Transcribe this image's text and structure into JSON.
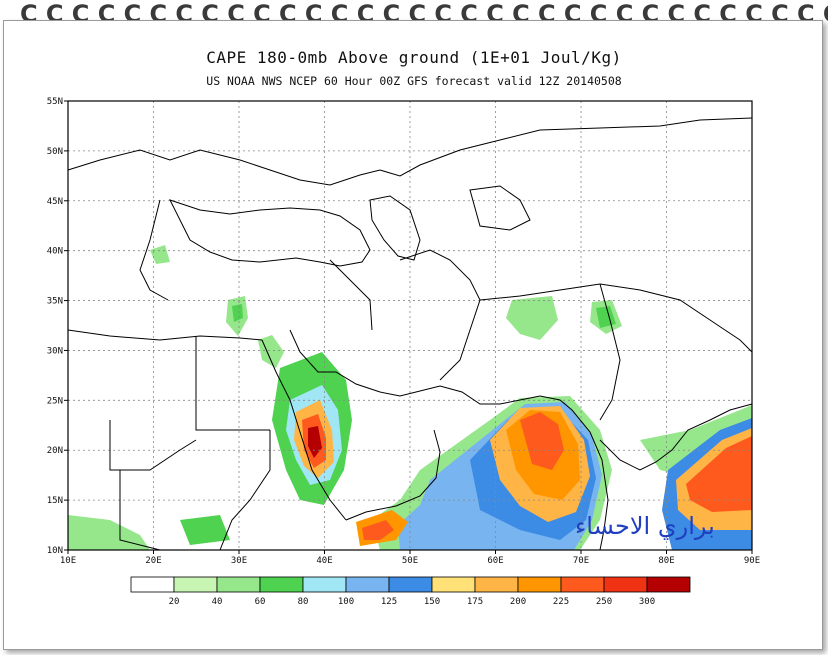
{
  "title": "CAPE 180-0mb Above ground (1E+01 Joul/Kg)",
  "subtitle": "US NOAA NWS NCEP 60 Hour 00Z GFS forecast valid 12Z 20140508",
  "lat_labels": [
    "55N",
    "50N",
    "45N",
    "40N",
    "35N",
    "30N",
    "25N",
    "20N",
    "15N",
    "10N"
  ],
  "lon_labels": [
    "10E",
    "20E",
    "30E",
    "40E",
    "50E",
    "60E",
    "70E",
    "80E",
    "90E"
  ],
  "legend": {
    "labels": [
      "20",
      "40",
      "60",
      "80",
      "100",
      "125",
      "150",
      "175",
      "200",
      "225",
      "250",
      "300"
    ],
    "colors": [
      "#ffffff",
      "#c8f5b4",
      "#96e68c",
      "#4ed250",
      "#a0e6f5",
      "#78b4f0",
      "#3c8ce6",
      "#ffe178",
      "#ffb446",
      "#ff9600",
      "#ff5a1e",
      "#f03214",
      "#b40000"
    ]
  },
  "watermark": "براري الاحساء",
  "colors": {
    "frame": "#9a9a9a",
    "border": "#000000",
    "grid": "#888888"
  },
  "icons": [
    "binder-ring-icon"
  ]
}
